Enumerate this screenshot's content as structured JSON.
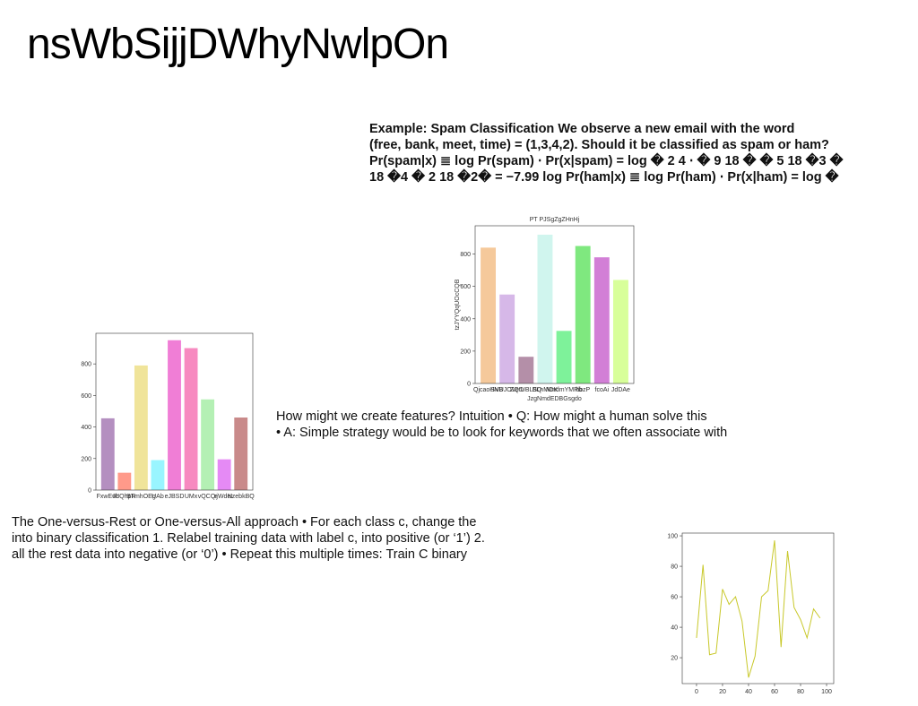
{
  "title": "nsWbSijjDWhyNwlpOn",
  "blocks": [
    {
      "lines": [
        "Example: Spam Classification We observe a new email with the word",
        "(free, bank, meet, time) = (1,3,4,2). Should it be classified as spam or ham?",
        "Pr(spam|x) ≣ log Pr(spam) ⋅ Pr(x|spam) = log � 2 4 ⋅ � 9 18 � � 5 18 �3 �",
        "18 �4 � 2 18 �2� = −7.99 log Pr(ham|x) ≣ log Pr(ham) ⋅ Pr(x|ham) = log �"
      ]
    },
    {
      "lines": [
        "How might we create features? Intuition • Q: How might a human solve this",
        "• A: Simple strategy would be to look for keywords that we often associate with"
      ]
    },
    {
      "lines": [
        "The One-versus-Rest or One-versus-All approach • For each class c, change the",
        "into binary classification 1. Relabel training data with label c, into positive (or ‘1’) 2.",
        "all the rest data into negative (or ‘0’) • Repeat this multiple times: Train C binary"
      ]
    }
  ],
  "charts": [
    {
      "chart_data": {
        "type": "bar",
        "title": "PT PJSgZgZHnHj",
        "x_label": "JzgNmdEDBGsgdo",
        "y_label": "tzJYYQqUOcCQB",
        "categories": [
          "QjcaoHNB",
          "SVUJOVeD",
          "ZQtUBLSQ",
          "BLnMOK",
          "NmdmYMRb",
          "hbzP",
          "fcoAi",
          "JdDAe"
        ],
        "values": [
          840,
          550,
          165,
          920,
          325,
          850,
          780,
          640
        ],
        "colors": [
          "#f5c99b",
          "#d6b8e8",
          "#b48fa8",
          "#d0f5ee",
          "#7ef29a",
          "#7fe87f",
          "#d27fd6",
          "#d8ff9a"
        ],
        "ylim": [
          0,
          975
        ],
        "yticks": [
          0,
          200,
          400,
          600,
          800
        ]
      }
    },
    {
      "chart_data": {
        "type": "bar",
        "categories": [
          "FxwEub",
          "RIQhpR",
          "BTmhOEg",
          "UAb",
          "eJBSD",
          "UMx",
          "vQCQr",
          "rjWdeL",
          "NzebkBQ"
        ],
        "values": [
          455,
          110,
          790,
          190,
          950,
          900,
          575,
          195,
          460
        ],
        "colors": [
          "#b48fc0",
          "#ff9a8a",
          "#f0e49a",
          "#99f5ff",
          "#f07ed6",
          "#f78ac0",
          "#b4f0b4",
          "#e58af5",
          "#c98a8a"
        ],
        "ylim": [
          0,
          994
        ],
        "yticks": [
          0,
          200,
          400,
          600,
          800
        ]
      }
    },
    {
      "chart_data": {
        "type": "line",
        "color": "#c8c82a",
        "x": [
          0,
          5,
          10,
          15,
          20,
          25,
          30,
          35,
          40,
          45,
          50,
          55,
          60,
          65,
          70,
          75,
          80,
          85,
          90,
          95
        ],
        "values": [
          33,
          81,
          22,
          23,
          65,
          55,
          60,
          44,
          7,
          21,
          60,
          64,
          97,
          27,
          90,
          53,
          45,
          33,
          52,
          46
        ],
        "xlim": [
          -11,
          105.5
        ],
        "xticks": [
          0,
          20,
          40,
          60,
          80,
          100
        ],
        "ylim": [
          3,
          101.8
        ],
        "yticks": [
          20,
          40,
          60,
          80,
          100
        ]
      }
    }
  ]
}
